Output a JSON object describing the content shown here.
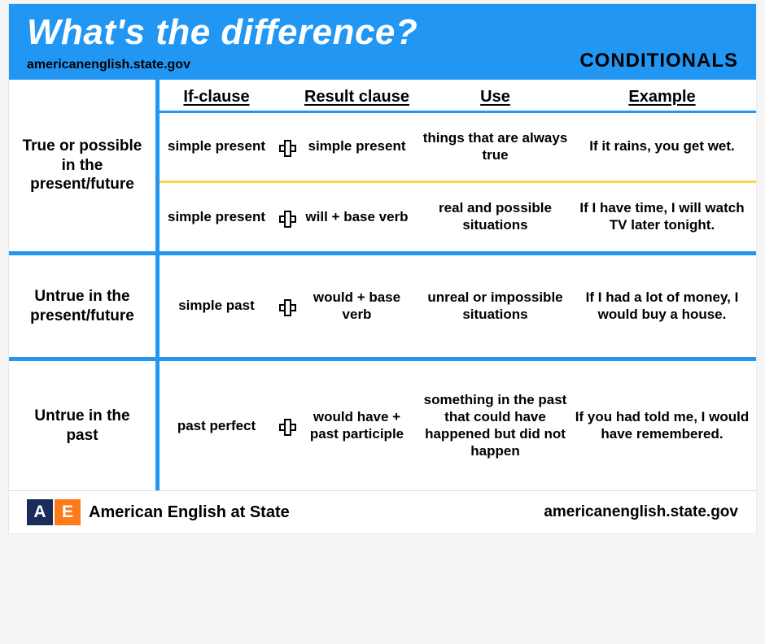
{
  "colors": {
    "header_bg": "#2196f3",
    "divider": "#2196f3",
    "sub_divider": "#ffd54f",
    "logo_a_bg": "#1a2b5c",
    "logo_e_bg": "#ff7a1a",
    "title_color": "#ffffff",
    "text_color": "#000000",
    "card_bg": "#ffffff"
  },
  "typography": {
    "title_fontsize": 44,
    "topic_fontsize": 24,
    "colhead_fontsize": 20,
    "rowlabel_fontsize": 19,
    "cell_fontsize": 17,
    "footer_fontsize": 20
  },
  "header": {
    "title": "What's the difference?",
    "source": "americanenglish.state.gov",
    "topic": "CONDITIONALS"
  },
  "columns": {
    "if": "If-clause",
    "result": "Result clause",
    "use": "Use",
    "example": "Example"
  },
  "sections": [
    {
      "label": "True or possible in the present/future",
      "rows": [
        {
          "if": "simple present",
          "result": "simple present",
          "use": "things that are always true",
          "example": "If it rains, you get wet."
        },
        {
          "if": "simple present",
          "result": "will + base verb",
          "use": "real and possible situations",
          "example": "If I have time, I will watch TV later tonight."
        }
      ]
    },
    {
      "label": "Untrue in the present/future",
      "rows": [
        {
          "if": "simple past",
          "result": "would + base verb",
          "use": "unreal or impossible situations",
          "example": "If I had a lot of money, I would buy a house."
        }
      ]
    },
    {
      "label": "Untrue in the past",
      "rows": [
        {
          "if": "past perfect",
          "result": "would have + past participle",
          "use": "something in the past that could have happened but did not happen",
          "example": "If you had told me, I would have remembered."
        }
      ]
    }
  ],
  "footer": {
    "logo_a": "A",
    "logo_e": "E",
    "brand": "American English at State",
    "url": "americanenglish.state.gov"
  }
}
